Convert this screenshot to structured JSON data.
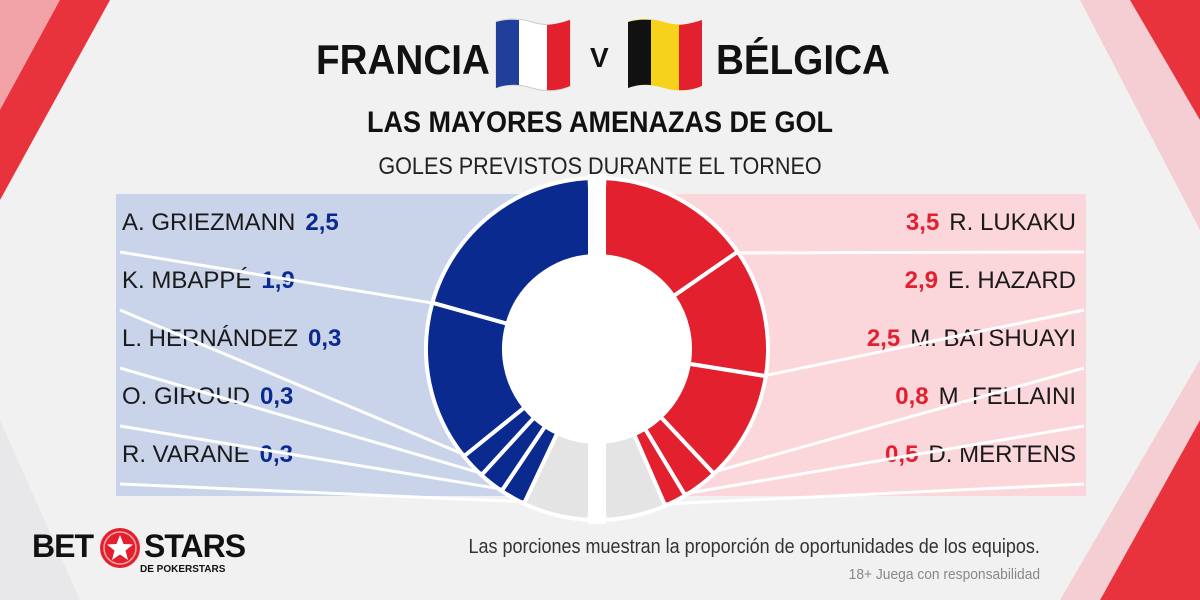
{
  "header": {
    "team_left": "FRANCIA",
    "versus": "V",
    "team_right": "BÉLGICA",
    "headline": "LAS MAYORES AMENAZAS DE GOL",
    "subline": "GOLES PREVISTOS DURANTE EL TORNEO"
  },
  "colors": {
    "france_blue": "#0a2a8f",
    "belgium_red": "#e3202e",
    "remainder_grey": "#e4e4e4",
    "panel_left": "#c9d3ea",
    "panel_right": "#fbd6da"
  },
  "chart_data": {
    "type": "pie",
    "title": "GOLES PREVISTOS DURANTE EL TORNEO",
    "series": [
      {
        "name": "FRANCIA",
        "categories": [
          "A. GRIEZMANN",
          "K. MBAPPÉ",
          "L. HERNÁNDEZ",
          "O. GIROUD",
          "R. VARANE"
        ],
        "values": [
          2.5,
          1.9,
          0.3,
          0.3,
          0.3
        ],
        "value_labels": [
          "2,5",
          "1,9",
          "0,3",
          "0,3",
          "0,3"
        ],
        "remainder_share": 0.13
      },
      {
        "name": "BÉLGICA",
        "categories": [
          "R. LUKAKU",
          "E. HAZARD",
          "M. BATSHUAYI",
          "M. FELLAINI",
          "D. MERTENS"
        ],
        "values": [
          3.5,
          2.9,
          2.5,
          0.8,
          0.5
        ],
        "value_labels": [
          "3,5",
          "2,9",
          "2,5",
          "0,8",
          "0,5"
        ],
        "remainder_share": 0.12
      }
    ]
  },
  "footer": {
    "note": "Las porciones muestran la proporción de oportunidades de los equipos.",
    "disclaimer": "18+ Juega con responsabilidad",
    "logo_main_left": "BET",
    "logo_main_right": "STARS",
    "logo_sub": "DE POKERSTARS"
  }
}
